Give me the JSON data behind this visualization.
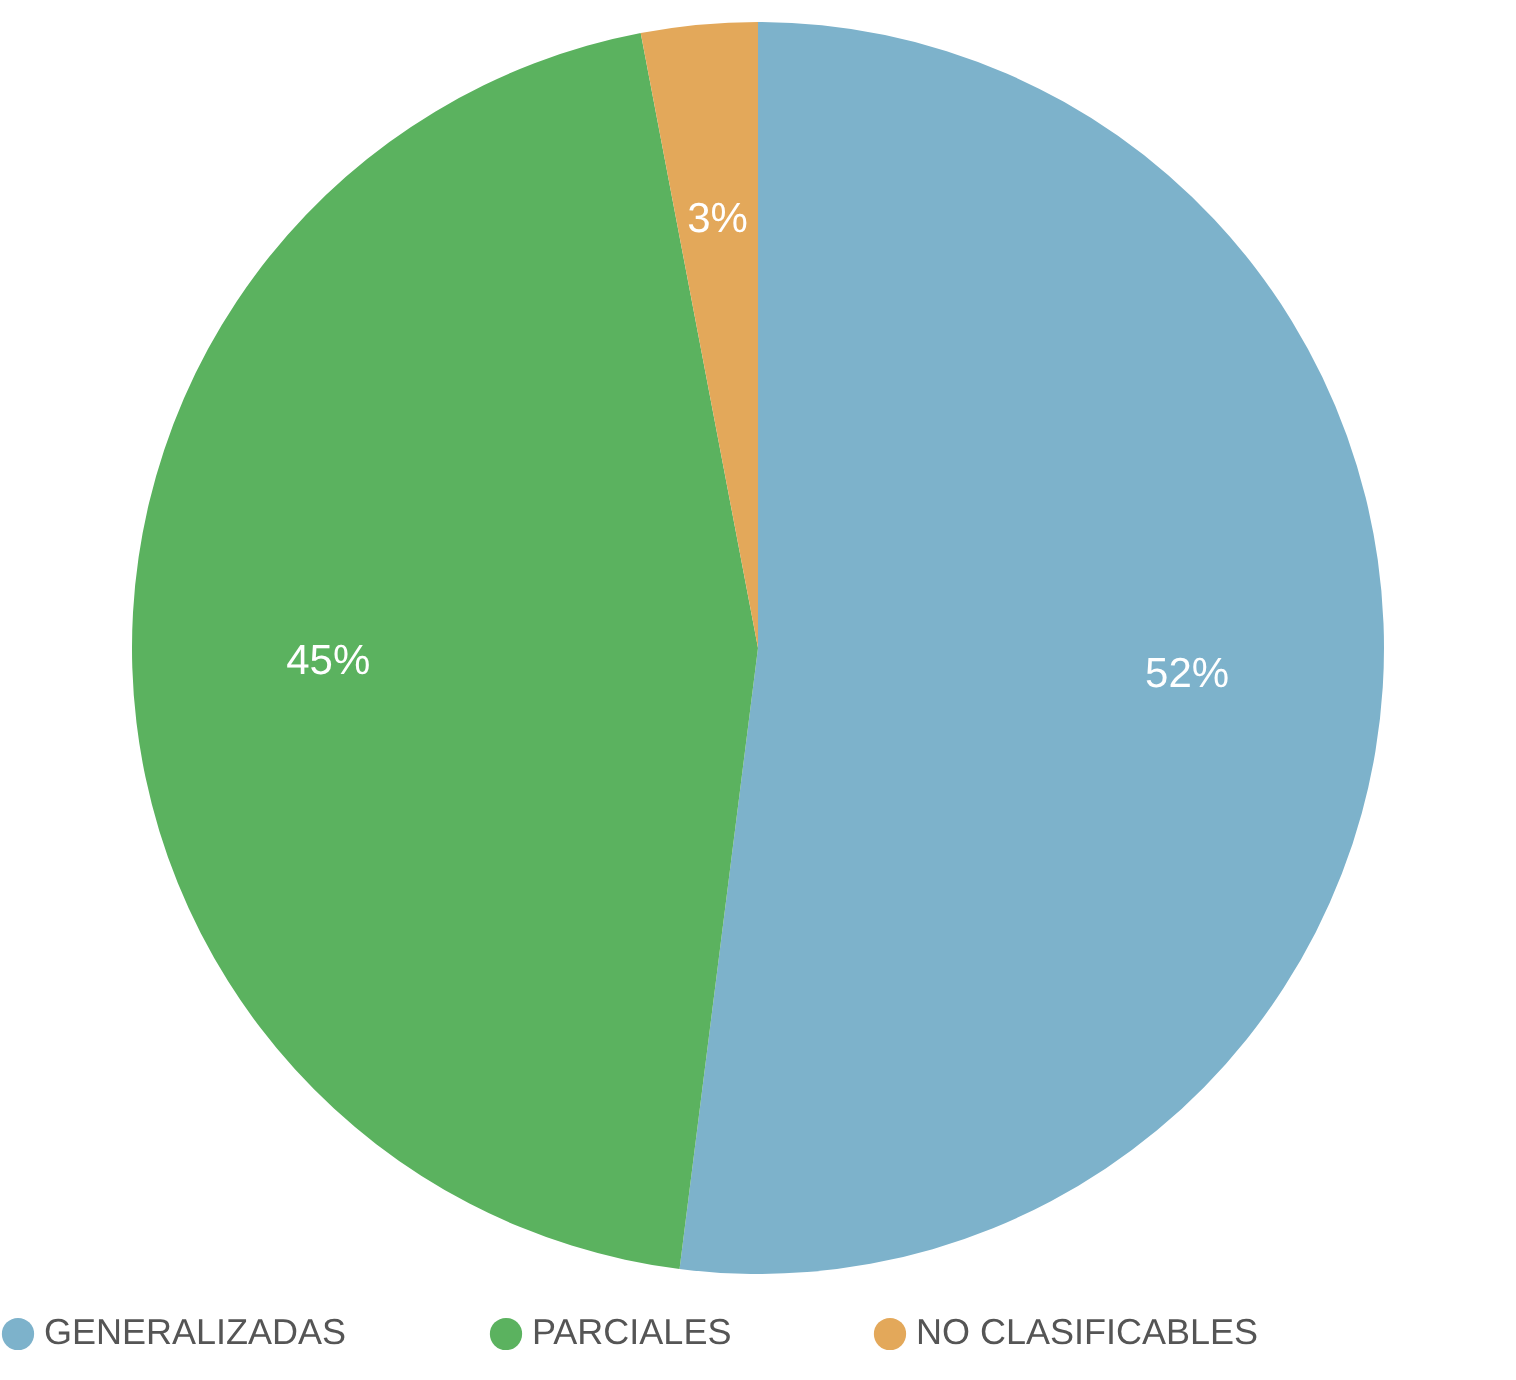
{
  "chart_data": {
    "type": "pie",
    "categories": [
      "GENERALIZADAS",
      "PARCIALES",
      "NO CLASIFICABLES"
    ],
    "values": [
      52,
      45,
      3
    ],
    "colors": [
      "#7db2cb",
      "#5bb25f",
      "#e3a85a"
    ],
    "value_labels": [
      "52%",
      "45%",
      "3%"
    ],
    "legend": "bottom"
  }
}
